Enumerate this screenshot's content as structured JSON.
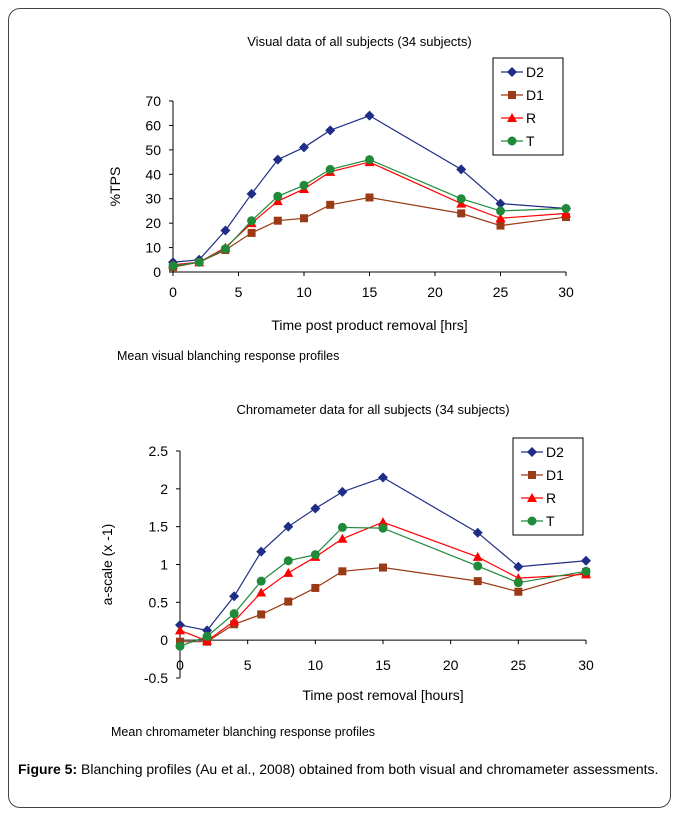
{
  "colors": {
    "D2": "#1f2d86",
    "D1": "#9b3a17",
    "R": "#ff0000",
    "T": "#1f8a3a"
  },
  "chart_data": [
    {
      "type": "line",
      "title": "Visual data of all subjects (34 subjects)",
      "xlabel": "Time post product removal [hrs]",
      "ylabel": "%TPS",
      "x": [
        0,
        2,
        4,
        6,
        8,
        10,
        12,
        15,
        22,
        25,
        30
      ],
      "xticks": [
        "0",
        "5",
        "10",
        "15",
        "20",
        "25",
        "30"
      ],
      "xlim": [
        0,
        30
      ],
      "yticks": [
        "0",
        "10",
        "20",
        "30",
        "40",
        "50",
        "60",
        "70"
      ],
      "ylim": [
        0,
        70
      ],
      "legend_position": "top-right",
      "note": "Mean visual blanching response profiles",
      "series": [
        {
          "name": "D2",
          "marker": "diamond",
          "values": [
            4,
            5,
            17,
            32,
            46,
            51,
            58,
            64,
            42,
            28,
            26
          ]
        },
        {
          "name": "D1",
          "marker": "square",
          "values": [
            2,
            4,
            9,
            16,
            21,
            22,
            27.5,
            30.5,
            24,
            19,
            22.5
          ]
        },
        {
          "name": "R",
          "marker": "triangle",
          "values": [
            3,
            4,
            10,
            20,
            29,
            34,
            41,
            45,
            28,
            22,
            24
          ]
        },
        {
          "name": "T",
          "marker": "circle",
          "values": [
            2.5,
            4,
            9.5,
            21,
            31,
            35.5,
            42,
            46,
            30,
            25,
            26
          ]
        }
      ]
    },
    {
      "type": "line",
      "title": "Chromameter data for all subjects (34 subjects)",
      "xlabel": "Time post removal [hours]",
      "ylabel": "a-scale (x -1)",
      "x": [
        0,
        2,
        4,
        6,
        8,
        10,
        12,
        15,
        22,
        25,
        30
      ],
      "xticks": [
        "0",
        "5",
        "10",
        "15",
        "20",
        "25",
        "30"
      ],
      "xlim": [
        0,
        30
      ],
      "yticks": [
        "-0.5",
        "0",
        "0.5",
        "1",
        "1.5",
        "2",
        "2.5"
      ],
      "ylim": [
        -0.5,
        2.5
      ],
      "legend_position": "top-right",
      "note": "Mean chromameter blanching response profiles",
      "series": [
        {
          "name": "D2",
          "marker": "diamond",
          "values": [
            0.2,
            0.13,
            0.58,
            1.17,
            1.5,
            1.74,
            1.96,
            2.15,
            1.42,
            0.97,
            1.05
          ]
        },
        {
          "name": "D1",
          "marker": "square",
          "values": [
            -0.02,
            -0.02,
            0.21,
            0.34,
            0.51,
            0.69,
            0.91,
            0.96,
            0.78,
            0.64,
            0.9
          ]
        },
        {
          "name": "R",
          "marker": "triangle",
          "values": [
            0.13,
            -0.01,
            0.25,
            0.63,
            0.89,
            1.1,
            1.34,
            1.56,
            1.1,
            0.82,
            0.87
          ]
        },
        {
          "name": "T",
          "marker": "circle",
          "values": [
            -0.08,
            0.05,
            0.35,
            0.78,
            1.05,
            1.13,
            1.49,
            1.48,
            0.98,
            0.76,
            0.91
          ]
        }
      ]
    }
  ],
  "caption": {
    "label": "Figure 5:",
    "text": " Blanching profiles (Au et al., 2008) obtained from both visual and chromameter assessments."
  }
}
